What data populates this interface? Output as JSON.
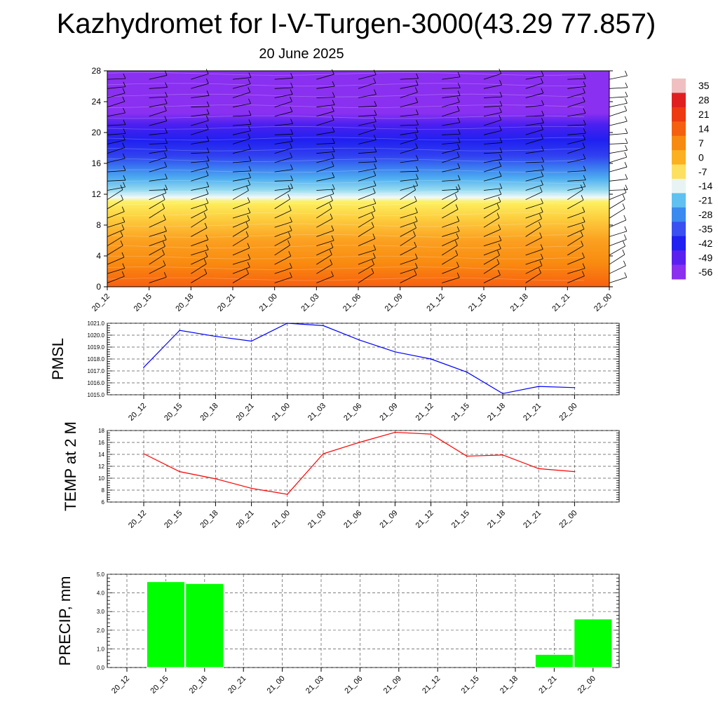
{
  "title": "Kazhydromet for I-V-Turgen-3000(43.29 77.857)",
  "subtitle": "20 June 2025",
  "colors": {
    "pmsl_line": "#0000ff",
    "temp_line": "#ff0000",
    "precip_bar": "#00ff00",
    "grid": "#555555"
  },
  "colorbar": {
    "labels": [
      "35",
      "28",
      "21",
      "14",
      "7",
      "0",
      "-7",
      "-14",
      "-21",
      "-28",
      "-35",
      "-42",
      "-49",
      "-56"
    ],
    "colors": [
      "#f0c0c0",
      "#e02020",
      "#ee3a10",
      "#f46010",
      "#f78a10",
      "#fab020",
      "#fde060",
      "#e8f4f4",
      "#60c0f0",
      "#3a8af0",
      "#3a50f0",
      "#2020f0",
      "#5a20f0",
      "#8a30f0"
    ]
  },
  "chart_data": [
    {
      "type": "heatmap",
      "name": "cross-section",
      "x_ticks": [
        "20_12",
        "20_15",
        "20_18",
        "20_21",
        "21_00",
        "21_03",
        "21_06",
        "21_09",
        "21_12",
        "21_15",
        "21_18",
        "21_21",
        "22_00"
      ],
      "y_ticks": [
        "0",
        "4",
        "8",
        "12",
        "16",
        "20",
        "24",
        "28"
      ],
      "ylim": [
        0,
        28
      ],
      "bands": [
        {
          "y": 0,
          "color": "#f86010"
        },
        {
          "y": 3,
          "color": "#f98a10"
        },
        {
          "y": 6,
          "color": "#fba020"
        },
        {
          "y": 9,
          "color": "#fdd040"
        },
        {
          "y": 11,
          "color": "#fdf060"
        },
        {
          "y": 11.6,
          "color": "#f0fafa"
        },
        {
          "y": 12.5,
          "color": "#9adcf0"
        },
        {
          "y": 14,
          "color": "#50b0f0"
        },
        {
          "y": 15.5,
          "color": "#3a7af0"
        },
        {
          "y": 17,
          "color": "#3040f0"
        },
        {
          "y": 19,
          "color": "#2020f0"
        },
        {
          "y": 21,
          "color": "#4a20f0"
        },
        {
          "y": 22.5,
          "color": "#8a30f0"
        },
        {
          "y": 28,
          "color": "#8a30f0"
        }
      ]
    },
    {
      "type": "line",
      "ylabel": "PMSL",
      "categories": [
        "20_12",
        "20_15",
        "20_18",
        "20_21",
        "21_00",
        "21_03",
        "21_06",
        "21_09",
        "21_12",
        "21_15",
        "21_18",
        "21_21",
        "22_00"
      ],
      "values": [
        1017.3,
        1020.4,
        1019.9,
        1019.5,
        1021.0,
        1020.8,
        1019.6,
        1018.6,
        1018.0,
        1016.9,
        1015.1,
        1015.7,
        1015.6
      ],
      "ylim": [
        1015.0,
        1021.0
      ],
      "y_ticks": [
        "1015.0",
        "1016.0",
        "1017.0",
        "1018.0",
        "1019.0",
        "1020.0",
        "1021.0"
      ]
    },
    {
      "type": "line",
      "ylabel": "TEMP at 2 M",
      "categories": [
        "20_12",
        "20_15",
        "20_18",
        "20_21",
        "21_00",
        "21_03",
        "21_06",
        "21_09",
        "21_12",
        "21_15",
        "21_18",
        "21_21",
        "22_00"
      ],
      "values": [
        14.1,
        11.1,
        9.9,
        8.3,
        7.3,
        14.1,
        16.0,
        17.7,
        17.4,
        13.7,
        13.9,
        11.6,
        11.1
      ],
      "ylim": [
        6,
        18
      ],
      "y_ticks": [
        "6",
        "8",
        "10",
        "12",
        "14",
        "16",
        "18"
      ]
    },
    {
      "type": "bar",
      "ylabel": "PRECIP, mm",
      "categories": [
        "20_12",
        "20_15",
        "20_18",
        "20_21",
        "21_00",
        "21_03",
        "21_06",
        "21_09",
        "21_12",
        "21_15",
        "21_18",
        "21_21",
        "22_00"
      ],
      "values": [
        0,
        4.6,
        4.5,
        0,
        0,
        0,
        0,
        0,
        0,
        0,
        0,
        0.7,
        2.6
      ],
      "ylim": [
        0,
        5.0
      ],
      "y_ticks": [
        "0.0",
        "1.0",
        "2.0",
        "3.0",
        "4.0",
        "5.0"
      ]
    }
  ]
}
